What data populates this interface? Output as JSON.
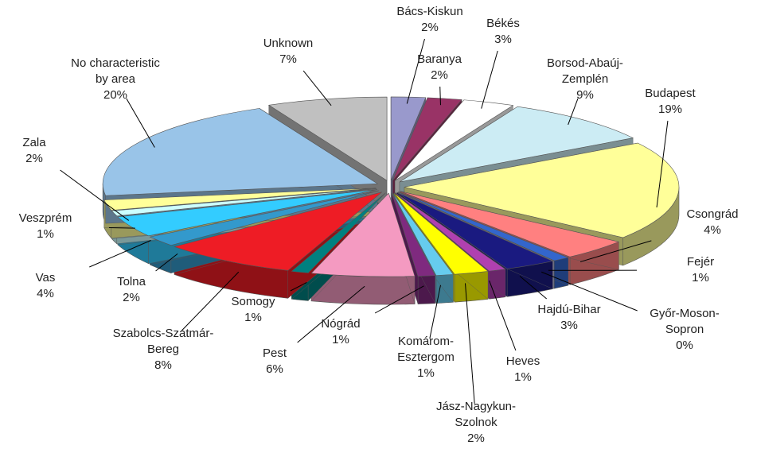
{
  "chart_data": {
    "type": "pie",
    "categories": [
      "Bács-Kiskun",
      "Baranya",
      "Békés",
      "Borsod-Abaúj-Zemplén",
      "Budapest",
      "Csongrád",
      "Fejér",
      "Győr-Moson-Sopron",
      "Hajdú-Bihar",
      "Heves",
      "Jász-Nagykun-Szolnok",
      "Komárom-Esztergom",
      "Nógrád",
      "Pest",
      "Somogy",
      "Szabolcs-Szatmár-Bereg",
      "Tolna",
      "Vas",
      "Veszprém",
      "Zala",
      "No characteristic by area",
      "Unknown"
    ],
    "values": [
      2,
      2,
      3,
      9,
      19,
      4,
      1,
      0,
      3,
      1,
      2,
      1,
      1,
      6,
      1,
      8,
      2,
      4,
      1,
      2,
      20,
      7
    ],
    "value_labels": [
      "2%",
      "2%",
      "3%",
      "9%",
      "19%",
      "4%",
      "1%",
      "0%",
      "3%",
      "1%",
      "2%",
      "1%",
      "1%",
      "6%",
      "1%",
      "8%",
      "2%",
      "4%",
      "1%",
      "2%",
      "20%",
      "7%"
    ],
    "colors": [
      "#9999cc",
      "#993366",
      "#ffffff",
      "#ccecf4",
      "#ffff99",
      "#ff8080",
      "#3366cc",
      "#ccccff",
      "#1a1a80",
      "#b040b0",
      "#ffff00",
      "#66ccee",
      "#7f2a7f",
      "#f49ac1",
      "#008080",
      "#ee1c25",
      "#3399cc",
      "#33ccff",
      "#ccffff",
      "#ffff99",
      "#99c4e8",
      "#c0c0c0"
    ]
  }
}
